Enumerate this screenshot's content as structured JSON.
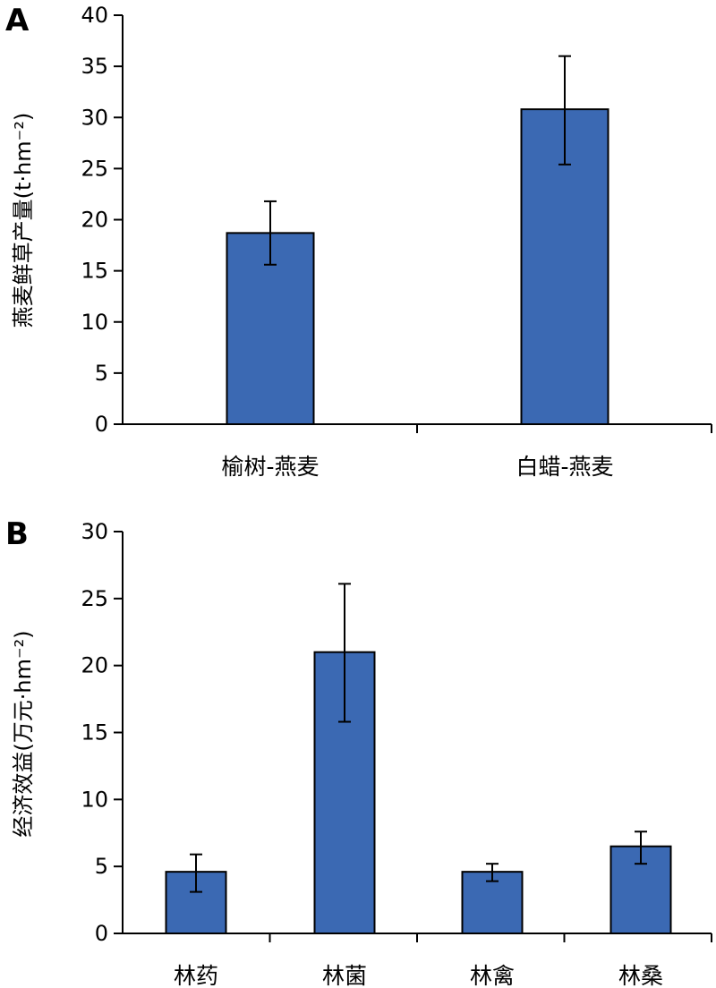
{
  "chart_data": [
    {
      "type": "bar",
      "panel": "A",
      "ylabel": "燕麦鲜草产量(t·hm⁻²)",
      "ylim": [
        0,
        40
      ],
      "yticks": [
        0,
        5,
        10,
        15,
        20,
        25,
        30,
        35,
        40
      ],
      "categories": [
        "榆树-燕麦",
        "白蜡-燕麦"
      ],
      "values": [
        18.7,
        30.8
      ],
      "error_low": [
        15.6,
        25.4
      ],
      "error_high": [
        21.8,
        36.0
      ],
      "bar_color": "#3b69b3"
    },
    {
      "type": "bar",
      "panel": "B",
      "ylabel": "经济效益(万元·hm⁻²)",
      "ylim": [
        0,
        30
      ],
      "yticks": [
        0,
        5,
        10,
        15,
        20,
        25,
        30
      ],
      "categories": [
        "林药",
        "林菌",
        "林禽",
        "林桑"
      ],
      "values": [
        4.6,
        21.0,
        4.6,
        6.5
      ],
      "error_low": [
        3.1,
        15.8,
        3.9,
        5.2
      ],
      "error_high": [
        5.9,
        26.1,
        5.2,
        7.6
      ],
      "bar_color": "#3b69b3"
    }
  ]
}
